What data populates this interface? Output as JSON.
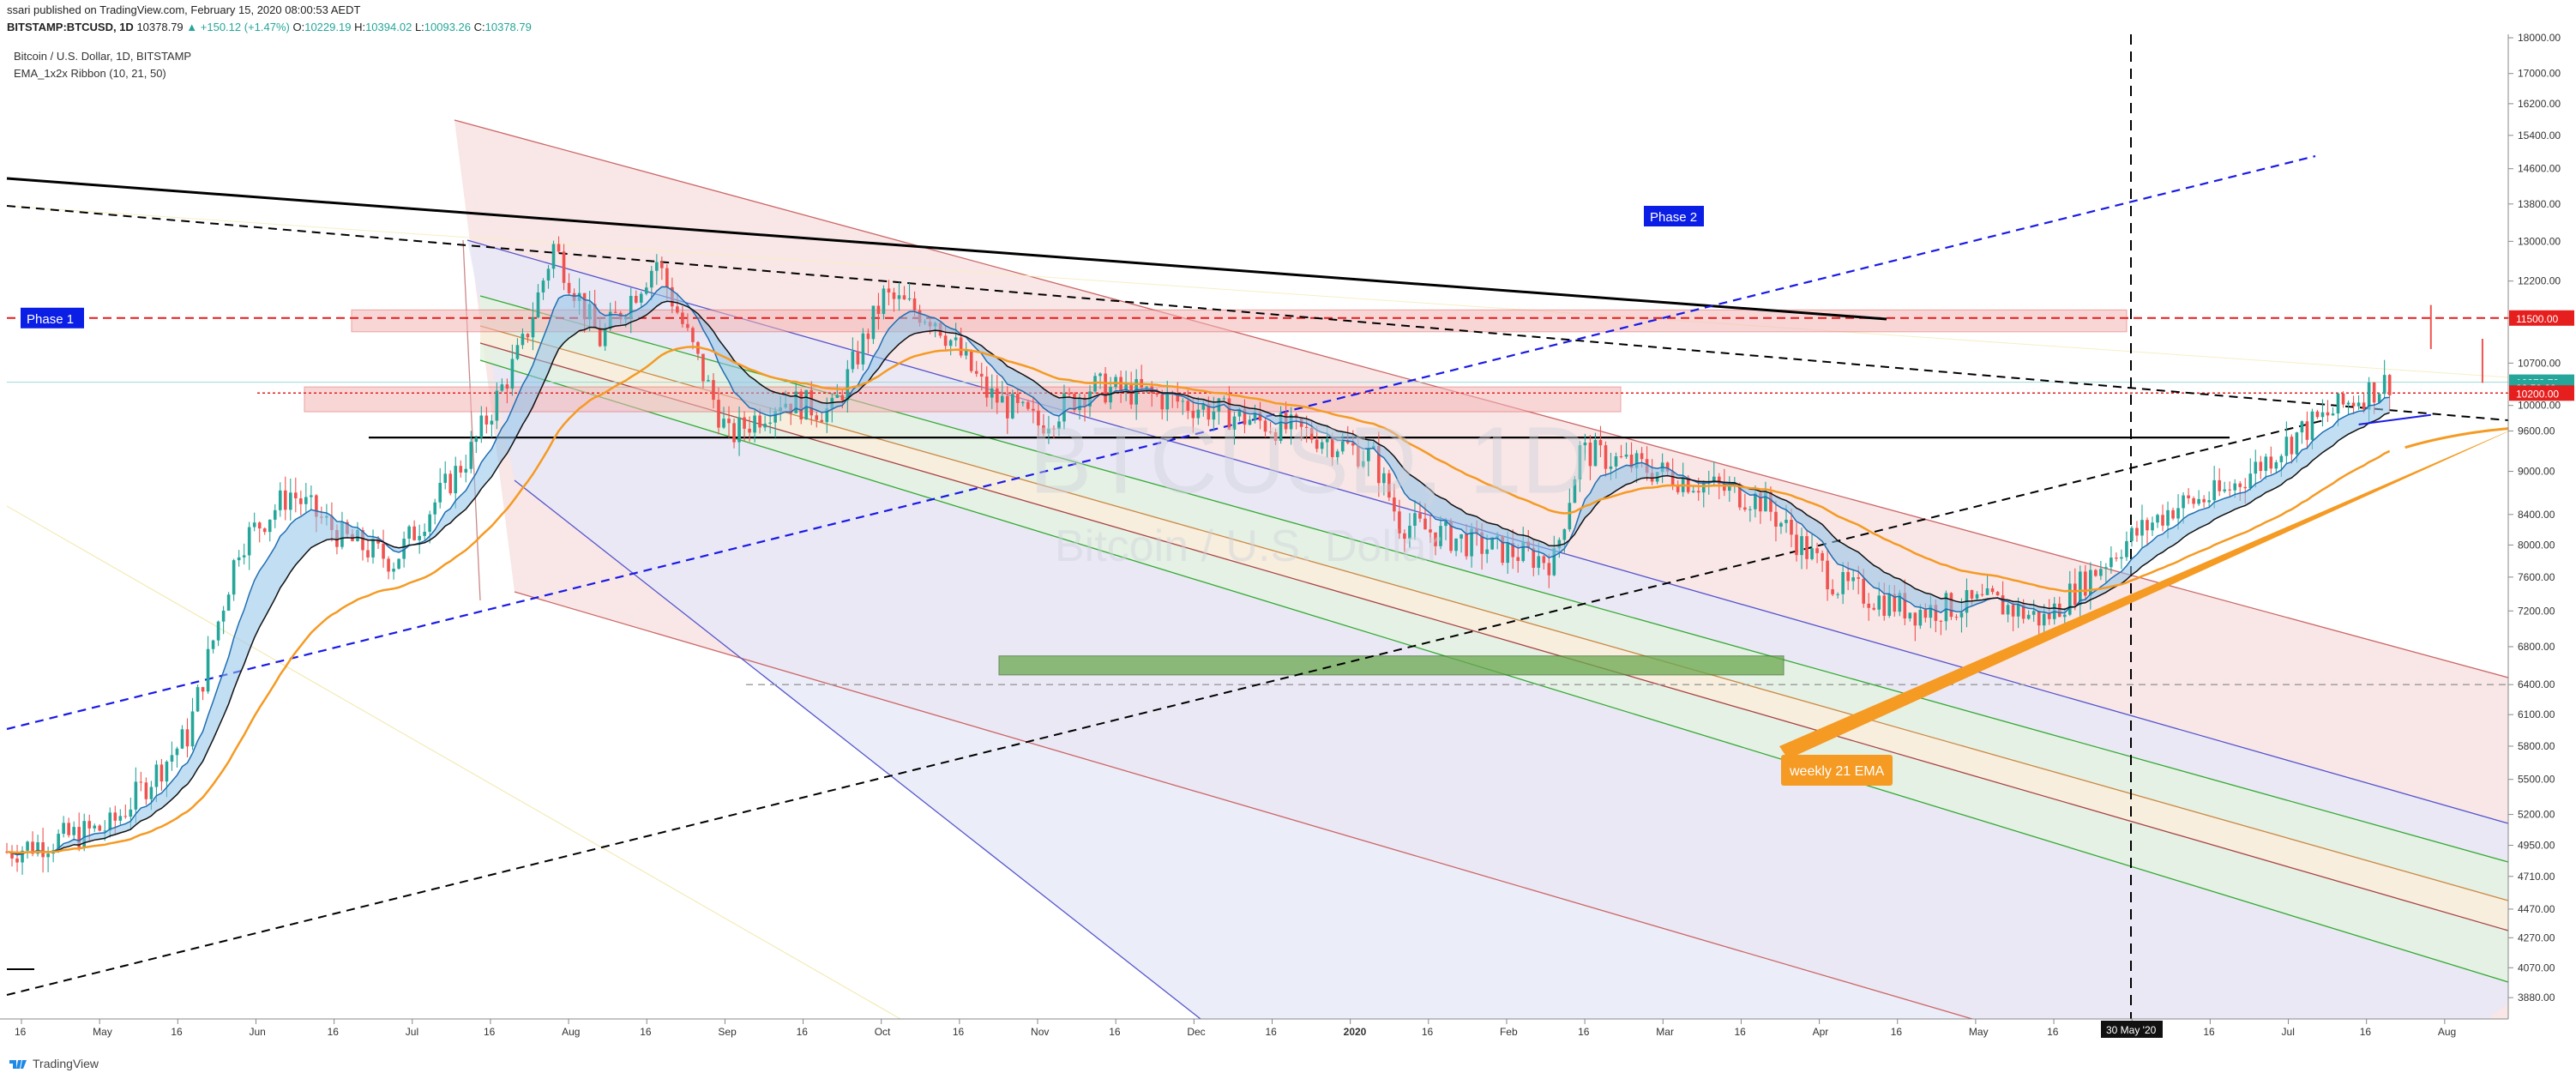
{
  "header": {
    "published": "ssari published on TradingView.com, February 15, 2020 08:00:53 AEDT",
    "symbol": "BITSTAMP:BTCUSD, 1D",
    "last": "10378.79",
    "change": "▲ +150.12 (+1.47%)",
    "o_label": "O:",
    "o": "10229.19",
    "h_label": "H:",
    "h": "10394.02",
    "l_label": "L:",
    "l": "10093.26",
    "c_label": "C:",
    "c": "10378.79"
  },
  "legend": {
    "line1": "Bitcoin / U.S. Dollar, 1D, BITSTAMP",
    "line2": "EMA_1x2x Ribbon  (10, 21, 50)"
  },
  "watermark": {
    "symbol": "BTCUSD, 1D",
    "name": "Bitcoin / U.S. Dollar"
  },
  "annotations": {
    "phase1": "Phase 1",
    "phase2": "Phase 2",
    "weekly_ema": "weekly 21 EMA"
  },
  "footer": {
    "brand": "TradingView"
  },
  "colors": {
    "up": "#26a69a",
    "down": "#ef5350",
    "ema_orange": "#f59a23",
    "ribbon_fill": "#8fc3ea",
    "label_blue": "#0b1ee6",
    "red_label": "#e61e1e"
  },
  "chart_data": {
    "type": "candlestick",
    "title": "Bitcoin / U.S. Dollar, 1D, BITSTAMP",
    "ylim": [
      3750,
      18100
    ],
    "y_scale": "log",
    "y_ticks": [
      18000,
      17000,
      16200,
      15400,
      14600,
      13800,
      13000,
      12200,
      11500,
      10700,
      10000,
      9600,
      9000,
      8400,
      8000,
      7600,
      7200,
      6800,
      6400,
      6100,
      5800,
      5500,
      5200,
      4950,
      4710,
      4470,
      4270,
      4070,
      3880
    ],
    "y_tick_labels": [
      "18000.00",
      "17000.00",
      "16200.00",
      "15400.00",
      "14600.00",
      "13800.00",
      "13000.00",
      "12200.00",
      "11500.00",
      "10700.00",
      "10000.00",
      "9600.00",
      "9000.00",
      "8400.00",
      "8000.00",
      "7600.00",
      "7200.00",
      "6800.00",
      "6400.00",
      "6100.00",
      "5800.00",
      "5500.00",
      "5200.00",
      "4950.00",
      "4710.00",
      "4470.00",
      "4270.00",
      "4070.00",
      "3880.00"
    ],
    "x_ticks": [
      "16",
      "May",
      "16",
      "Jun",
      "16",
      "Jul",
      "16",
      "Aug",
      "16",
      "Sep",
      "16",
      "Oct",
      "16",
      "Nov",
      "16",
      "Dec",
      "16",
      "2020",
      "16",
      "Feb",
      "16",
      "Mar",
      "16",
      "Apr",
      "16",
      "May",
      "16",
      "Jun",
      "16",
      "Jul",
      "16",
      "Aug"
    ],
    "x_highlight": "30 May '20",
    "price_labels": [
      {
        "value": 11500,
        "text": "11500.00",
        "color": "#e61e1e"
      },
      {
        "value": 10378.79,
        "text": "10378.79",
        "color": "#26a69a"
      },
      {
        "value": 10290,
        "text": "02:59:09",
        "color": "#26a69a"
      },
      {
        "value": 10200,
        "text": "10200.00",
        "color": "#e61e1e"
      }
    ],
    "key_levels": {
      "resistance_zone": [
        11250,
        11650
      ],
      "mid_zone": [
        9900,
        10300
      ],
      "support_zone": [
        6500,
        6700
      ],
      "horizontal_support": 9500
    },
    "ohlc_anchor_path": [
      [
        0,
        4900
      ],
      [
        20,
        5100
      ],
      [
        35,
        5900
      ],
      [
        45,
        8000
      ],
      [
        55,
        8700
      ],
      [
        65,
        8100
      ],
      [
        75,
        7800
      ],
      [
        90,
        9300
      ],
      [
        100,
        11000
      ],
      [
        106,
        12900
      ],
      [
        115,
        11100
      ],
      [
        126,
        12600
      ],
      [
        140,
        9500
      ],
      [
        150,
        10100
      ],
      [
        160,
        9900
      ],
      [
        170,
        11900
      ],
      [
        180,
        11500
      ],
      [
        190,
        10200
      ],
      [
        200,
        9700
      ],
      [
        210,
        10300
      ],
      [
        220,
        10200
      ],
      [
        230,
        10000
      ],
      [
        240,
        9800
      ],
      [
        255,
        9500
      ],
      [
        265,
        9200
      ],
      [
        270,
        8300
      ],
      [
        285,
        8000
      ],
      [
        300,
        7800
      ],
      [
        305,
        9300
      ],
      [
        315,
        9100
      ],
      [
        330,
        8800
      ],
      [
        340,
        8600
      ],
      [
        355,
        7500
      ],
      [
        370,
        7200
      ],
      [
        385,
        7300
      ],
      [
        395,
        7100
      ],
      [
        410,
        8000
      ],
      [
        420,
        8500
      ],
      [
        430,
        8700
      ],
      [
        445,
        9600
      ],
      [
        455,
        10100
      ],
      [
        462,
        10400
      ]
    ],
    "projection": [
      [
        470,
        11400
      ],
      [
        480,
        10800
      ],
      [
        495,
        10300
      ],
      [
        510,
        10000
      ],
      [
        520,
        10200
      ],
      [
        540,
        10100
      ]
    ]
  }
}
